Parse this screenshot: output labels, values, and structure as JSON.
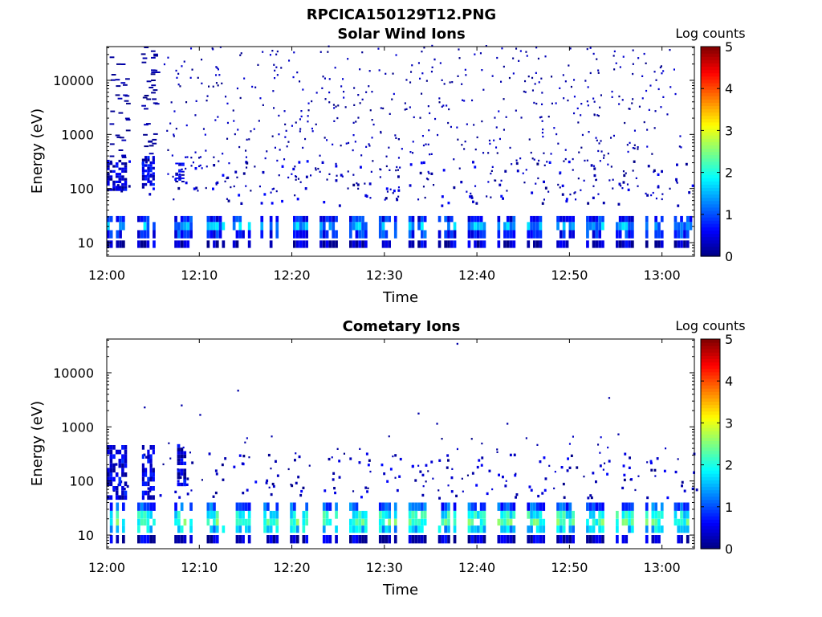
{
  "figure": {
    "title": "RPCICA150129T12.PNG"
  },
  "chart_data": [
    {
      "type": "heatmap",
      "title": "Solar Wind Ions",
      "xlabel": "Time",
      "ylabel": "Energy (eV)",
      "x_ticks": [
        "12:00",
        "12:10",
        "12:20",
        "12:30",
        "12:40",
        "12:50",
        "13:00"
      ],
      "x_range_minutes": [
        0,
        63.5
      ],
      "y_scale": "log",
      "y_ticks": [
        10,
        100,
        1000,
        10000
      ],
      "y_tick_labels": [
        "10",
        "100",
        "1000",
        "10000"
      ],
      "y_range": [
        5.6,
        42000
      ],
      "colorbar": {
        "label": "Log counts",
        "ticks": [
          0,
          1,
          2,
          3,
          4,
          5
        ],
        "tick_labels": [
          "0",
          "1",
          "2",
          "3",
          "4",
          "5"
        ],
        "colormap": "jet"
      },
      "sweeps_start_minutes": [
        0.0,
        3.3,
        7.3,
        10.8,
        13.6,
        16.6,
        19.8,
        23.0,
        26.2,
        29.4,
        32.6,
        35.8,
        39.0,
        42.2,
        45.4,
        48.6,
        51.8,
        55.0,
        58.2,
        61.3
      ],
      "bands": [
        {
          "emin": 24,
          "emax": 31,
          "level": 0.7
        },
        {
          "emin": 17,
          "emax": 24,
          "level": 1.4
        },
        {
          "emin": 12,
          "emax": 17,
          "level": 0.8
        },
        {
          "emin": 8,
          "emax": 11,
          "level": 0.3
        }
      ],
      "early_high_energy_blocks": [
        {
          "t0": 0.0,
          "t1": 2.2,
          "emin": 90,
          "emax": 340,
          "level": 0.4
        },
        {
          "t0": 3.8,
          "t1": 5.2,
          "emin": 100,
          "emax": 400,
          "level": 0.5
        },
        {
          "t0": 7.4,
          "t1": 8.4,
          "emin": 130,
          "emax": 300,
          "level": 0.4
        }
      ],
      "scatter_density": "high"
    },
    {
      "type": "heatmap",
      "title": "Cometary Ions",
      "xlabel": "Time",
      "ylabel": "Energy (eV)",
      "x_ticks": [
        "12:00",
        "12:10",
        "12:20",
        "12:30",
        "12:40",
        "12:50",
        "13:00"
      ],
      "x_range_minutes": [
        0,
        63.5
      ],
      "y_scale": "log",
      "y_ticks": [
        10,
        100,
        1000,
        10000
      ],
      "y_tick_labels": [
        "10",
        "100",
        "1000",
        "10000"
      ],
      "y_range": [
        5.6,
        42000
      ],
      "colorbar": {
        "label": "Log counts",
        "ticks": [
          0,
          1,
          2,
          3,
          4,
          5
        ],
        "tick_labels": [
          "0",
          "1",
          "2",
          "3",
          "4",
          "5"
        ],
        "colormap": "jet"
      },
      "sweeps_start_minutes": [
        0.0,
        3.3,
        7.3,
        10.8,
        13.6,
        16.6,
        19.8,
        23.0,
        26.2,
        29.4,
        32.6,
        35.8,
        39.0,
        42.2,
        45.4,
        48.6,
        51.8,
        55.0,
        58.2,
        61.3
      ],
      "bands": [
        {
          "emin": 28,
          "emax": 40,
          "level": 1.0
        },
        {
          "emin": 20,
          "emax": 28,
          "level": 1.9
        },
        {
          "emin": 15,
          "emax": 20,
          "level": 2.2
        },
        {
          "emin": 11,
          "emax": 15,
          "level": 1.6
        },
        {
          "emin": 7,
          "emax": 10,
          "level": 0.3
        }
      ],
      "early_high_energy_blocks": [
        {
          "t0": 0.0,
          "t1": 2.2,
          "emin": 45,
          "emax": 460,
          "level": 0.5
        },
        {
          "t0": 3.8,
          "t1": 5.2,
          "emin": 45,
          "emax": 460,
          "level": 0.5
        },
        {
          "t0": 7.6,
          "t1": 8.6,
          "emin": 80,
          "emax": 480,
          "level": 0.4
        }
      ],
      "scatter_density": "low"
    }
  ]
}
